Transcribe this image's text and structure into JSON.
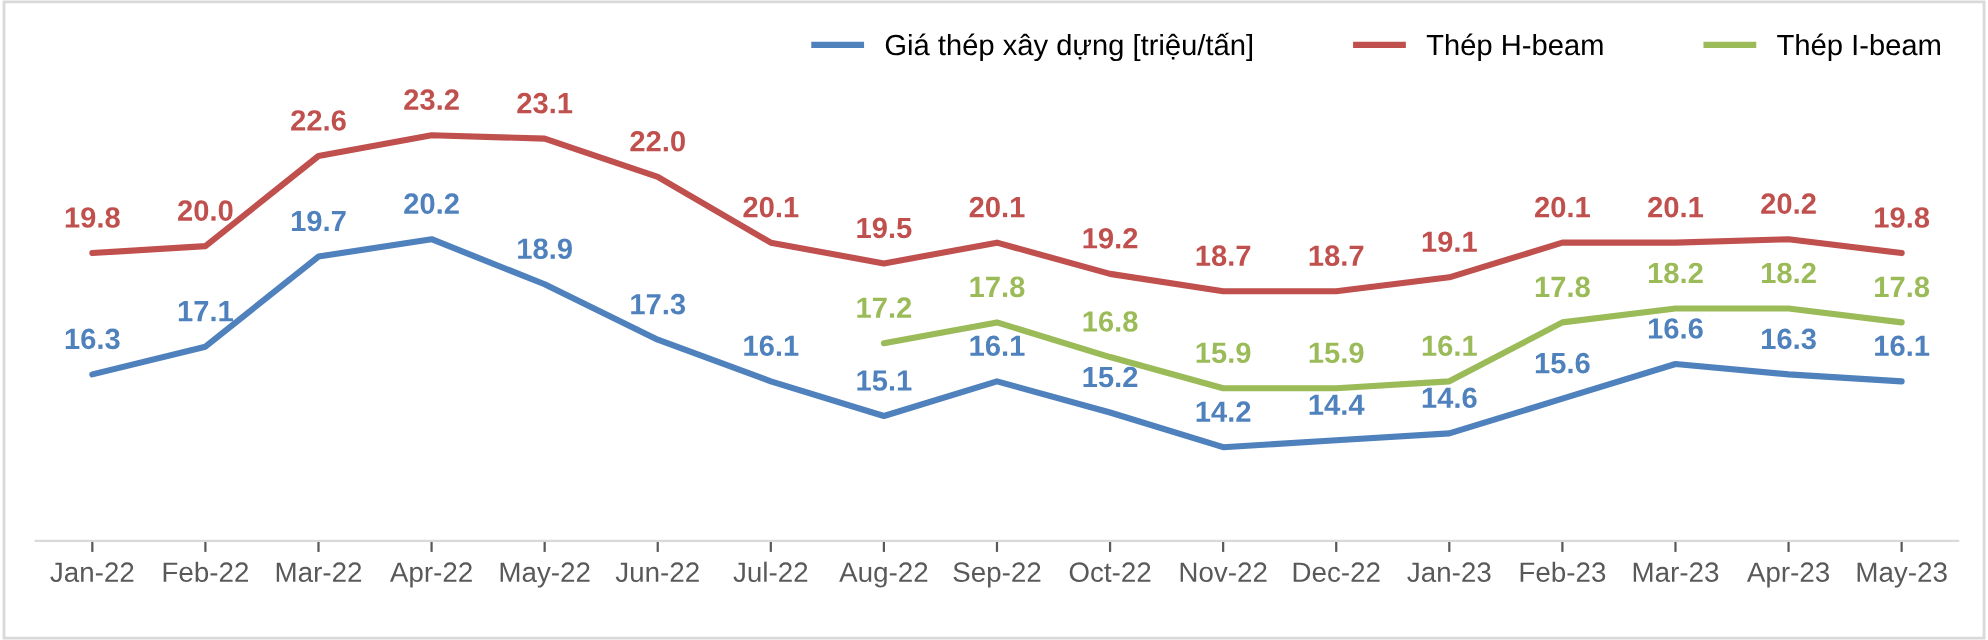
{
  "chart_data": {
    "type": "line",
    "categories": [
      "Jan-22",
      "Feb-22",
      "Mar-22",
      "Apr-22",
      "May-22",
      "Jun-22",
      "Jul-22",
      "Aug-22",
      "Sep-22",
      "Oct-22",
      "Nov-22",
      "Dec-22",
      "Jan-23",
      "Feb-23",
      "Mar-23",
      "Apr-23",
      "May-23"
    ],
    "series": [
      {
        "name": "Giá thép xây dựng [triệu/tấn]",
        "color": "#4f81bd",
        "values": [
          16.3,
          17.1,
          19.7,
          20.2,
          18.9,
          17.3,
          16.1,
          15.1,
          16.1,
          15.2,
          14.2,
          14.4,
          14.6,
          15.6,
          16.6,
          16.3,
          16.1
        ],
        "value_labels": [
          "16.3",
          "17.1",
          "19.7",
          "20.2",
          "18.9",
          "17.3",
          "16.1",
          "15.1",
          "16.1",
          "15.2",
          "14.2",
          "14.4",
          "14.6",
          "15.6",
          "16.6",
          "16.3",
          "16.1"
        ]
      },
      {
        "name": "Thép H-beam",
        "color": "#c0504d",
        "values": [
          19.8,
          20.0,
          22.6,
          23.2,
          23.1,
          22.0,
          20.1,
          19.5,
          20.1,
          19.2,
          18.7,
          18.7,
          19.1,
          20.1,
          20.1,
          20.2,
          19.8
        ],
        "value_labels": [
          "19.8",
          "20.0",
          "22.6",
          "23.2",
          "23.1",
          "22.0",
          "20.1",
          "19.5",
          "20.1",
          "19.2",
          "18.7",
          "18.7",
          "19.1",
          "20.1",
          "20.1",
          "20.2",
          "19.8"
        ]
      },
      {
        "name": "Thép I-beam",
        "color": "#9bbb59",
        "values": [
          null,
          null,
          null,
          null,
          null,
          null,
          null,
          17.2,
          17.8,
          16.8,
          15.9,
          15.9,
          16.1,
          17.8,
          18.2,
          18.2,
          17.8
        ],
        "value_labels": [
          null,
          null,
          null,
          null,
          null,
          null,
          null,
          "17.2",
          "17.8",
          "16.8",
          "15.9",
          "15.9",
          "16.1",
          "17.8",
          "18.2",
          "18.2",
          "17.8"
        ]
      }
    ],
    "tick_labels": "x",
    "legend": "top right",
    "line_style": "solid"
  }
}
